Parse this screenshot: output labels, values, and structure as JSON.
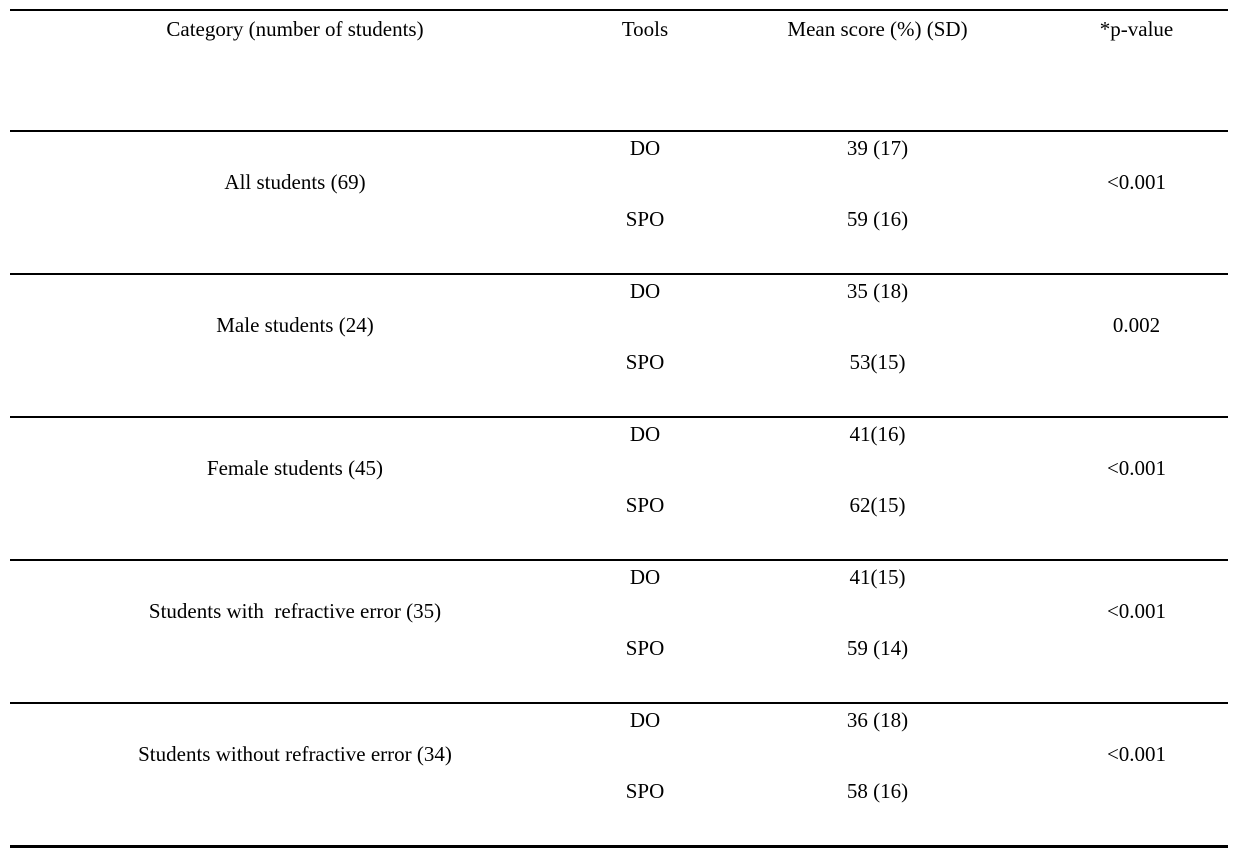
{
  "table": {
    "headers": {
      "category": "Category (number of students)",
      "tools": "Tools",
      "mean": "Mean score (%) (SD)",
      "pvalue": "*p-value"
    },
    "groups": [
      {
        "category": "All students (69)",
        "pvalue": "<0.001",
        "rows": [
          {
            "tool": "DO",
            "mean": "39 (17)"
          },
          {
            "tool": "SPO",
            "mean": "59 (16)"
          }
        ]
      },
      {
        "category": "Male students (24)",
        "pvalue": "0.002",
        "rows": [
          {
            "tool": "DO",
            "mean": "35 (18)"
          },
          {
            "tool": "SPO",
            "mean": "53(15)"
          }
        ]
      },
      {
        "category": "Female students (45)",
        "pvalue": "<0.001",
        "rows": [
          {
            "tool": "DO",
            "mean": "41(16)"
          },
          {
            "tool": "SPO",
            "mean": "62(15)"
          }
        ]
      },
      {
        "category": "Students with  refractive error (35)",
        "pvalue": "<0.001",
        "rows": [
          {
            "tool": "DO",
            "mean": "41(15)"
          },
          {
            "tool": "SPO",
            "mean": "59 (14)"
          }
        ]
      },
      {
        "category": "Students without refractive error (34)",
        "pvalue": "<0.001",
        "rows": [
          {
            "tool": "DO",
            "mean": "36 (18)"
          },
          {
            "tool": "SPO",
            "mean": "58 (16)"
          }
        ]
      }
    ],
    "colors": {
      "text": "#000000",
      "background": "#ffffff",
      "rule": "#000000"
    }
  }
}
